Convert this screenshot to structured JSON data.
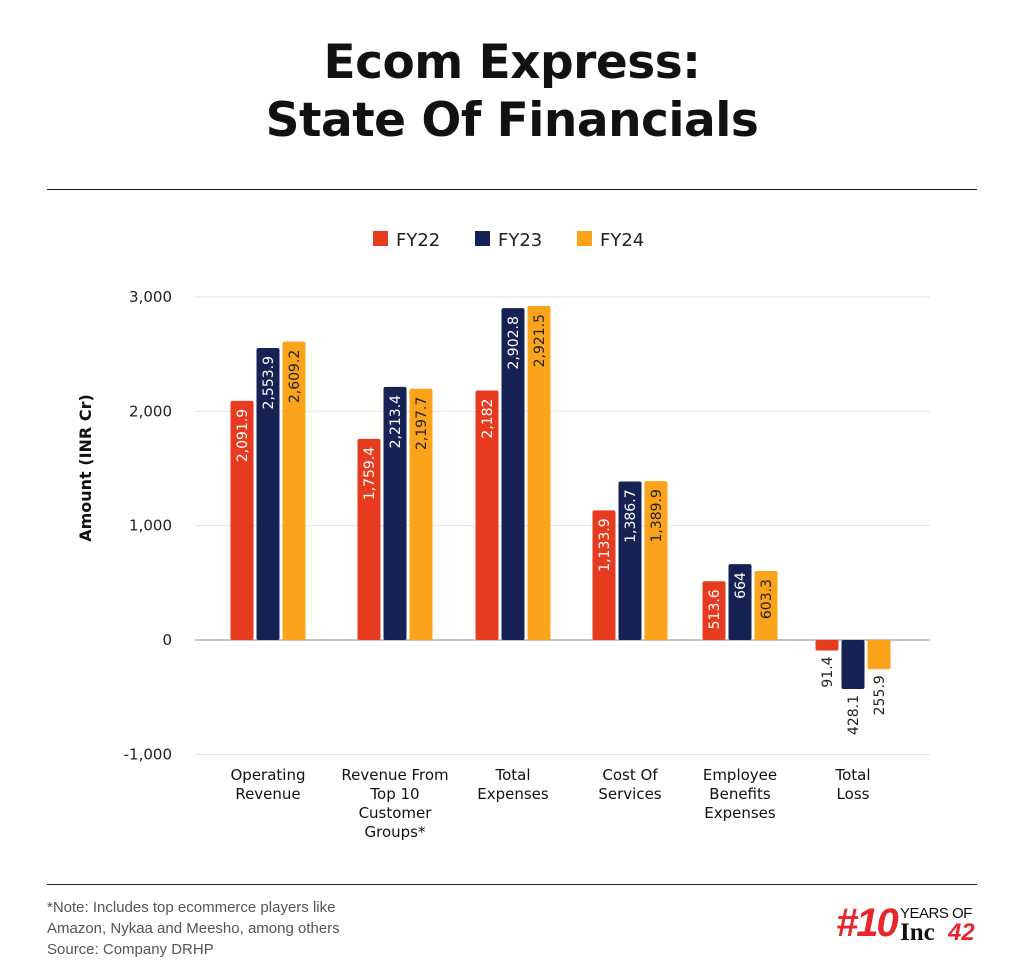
{
  "chart_data": {
    "type": "bar",
    "title_lines": [
      "Ecom Express:",
      "State Of Financials"
    ],
    "ylabel": "Amount (INR Cr)",
    "ylim": [
      -1000,
      3000
    ],
    "yticks": [
      3000,
      2000,
      1000,
      0,
      -1000
    ],
    "ytick_labels": [
      "3,000",
      "2,000",
      "1,000",
      "0",
      "-1,000"
    ],
    "grid": true,
    "legend_placement": "top-center",
    "categories": [
      [
        "Operating",
        "Revenue"
      ],
      [
        "Revenue From",
        "Top 10",
        "Customer",
        "Groups*"
      ],
      [
        "Total",
        "Expenses"
      ],
      [
        "Cost Of",
        "Services"
      ],
      [
        "Employee",
        "Benefits",
        "Expenses"
      ],
      [
        "Total",
        "Loss"
      ]
    ],
    "series": [
      {
        "name": "FY22",
        "color": "#e63b1f",
        "values": [
          2091.9,
          1759.4,
          2182,
          1133.9,
          513.6,
          -91.4
        ],
        "labels": [
          "2,091.9",
          "1,759.4",
          "2,182",
          "1,133.9",
          "513.6",
          "91.4"
        ]
      },
      {
        "name": "FY23",
        "color": "#152253",
        "values": [
          2553.9,
          2213.4,
          2902.8,
          1386.7,
          664,
          -428.1
        ],
        "labels": [
          "2,553.9",
          "2,213.4",
          "2,902.8",
          "1,386.7",
          "664",
          "428.1"
        ]
      },
      {
        "name": "FY24",
        "color": "#fba41b",
        "values": [
          2609.2,
          2197.7,
          2921.5,
          1389.9,
          603.3,
          -255.9
        ],
        "labels": [
          "2,609.2",
          "2,197.7",
          "2,921.5",
          "1,389.9",
          "603.3",
          "255.9"
        ]
      }
    ]
  },
  "footer": {
    "note_lines": [
      "*Note: Includes top ecommerce players like",
      "Amazon, Nykaa and Meesho, among others",
      "Source: Company DRHP"
    ],
    "logo": {
      "hash": "#10",
      "years": "YEARS OF",
      "inc": "Inc",
      "num": "42"
    }
  }
}
